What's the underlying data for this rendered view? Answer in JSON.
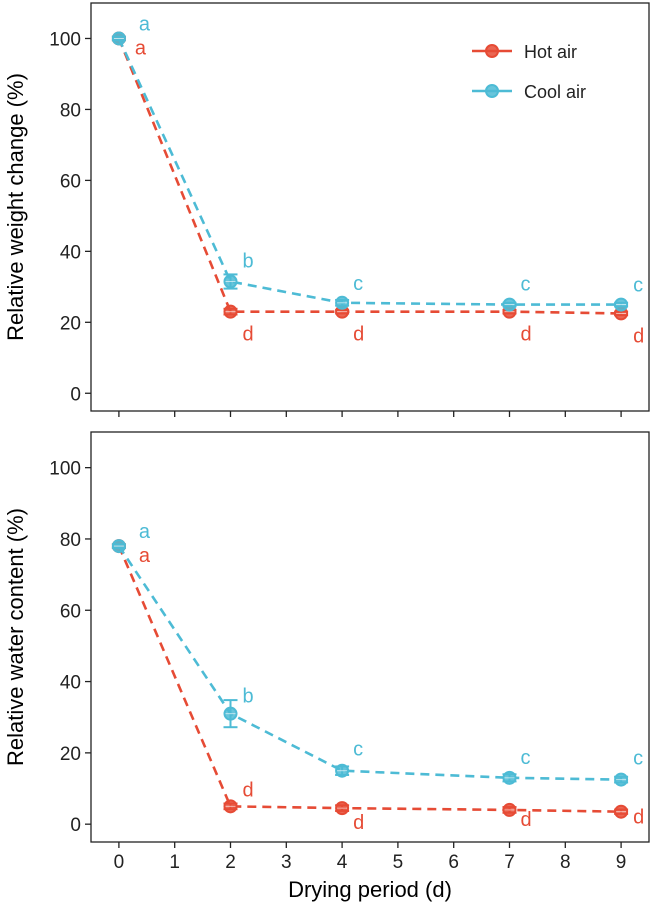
{
  "chart_data": {
    "type": "line",
    "xlabel": "Drying period (d)",
    "x_ticks": [
      "0",
      "1",
      "2",
      "3",
      "4",
      "5",
      "6",
      "7",
      "8",
      "9"
    ],
    "xlim": [
      -0.5,
      9.5
    ],
    "legend": {
      "placement": "top-right",
      "entries": [
        "Hot air",
        "Cool air"
      ]
    },
    "series_colors": {
      "Hot air": "#E64B35",
      "Cool air": "#4DBBD5"
    },
    "panels": [
      {
        "ylabel": "Relative weight change (%)",
        "ylim": [
          -5,
          110
        ],
        "y_ticks": [
          "0",
          "20",
          "40",
          "60",
          "80",
          "100"
        ],
        "series": [
          {
            "name": "Hot air",
            "x": [
              0,
              2,
              4,
              7,
              9
            ],
            "y": [
              100,
              23,
              23,
              23,
              22.5
            ],
            "err": [
              0.5,
              0.8,
              0.5,
              0.5,
              0.5
            ],
            "labels": [
              "a",
              "d",
              "d",
              "d",
              "d"
            ]
          },
          {
            "name": "Cool air",
            "x": [
              0,
              2,
              4,
              7,
              9
            ],
            "y": [
              100,
              31.5,
              25.5,
              25,
              25
            ],
            "err": [
              0.5,
              2,
              0.8,
              0.5,
              0.5
            ],
            "labels": [
              "a",
              "b",
              "c",
              "c",
              "c"
            ]
          }
        ]
      },
      {
        "ylabel": "Relative water content (%)",
        "ylim": [
          -5,
          110
        ],
        "y_ticks": [
          "0",
          "20",
          "40",
          "60",
          "80",
          "100"
        ],
        "series": [
          {
            "name": "Hot air",
            "x": [
              0,
              2,
              4,
              7,
              9
            ],
            "y": [
              78,
              5,
              4.5,
              4,
              3.5
            ],
            "err": [
              0.5,
              0.8,
              0.8,
              0.8,
              0.6
            ],
            "labels": [
              "a",
              "d",
              "d",
              "d",
              "d"
            ]
          },
          {
            "name": "Cool air",
            "x": [
              0,
              2,
              4,
              7,
              9
            ],
            "y": [
              78,
              31,
              15,
              13,
              12.5
            ],
            "err": [
              0.5,
              3.8,
              1.2,
              1,
              0.8
            ],
            "labels": [
              "a",
              "b",
              "c",
              "c",
              "c"
            ]
          }
        ]
      }
    ]
  }
}
